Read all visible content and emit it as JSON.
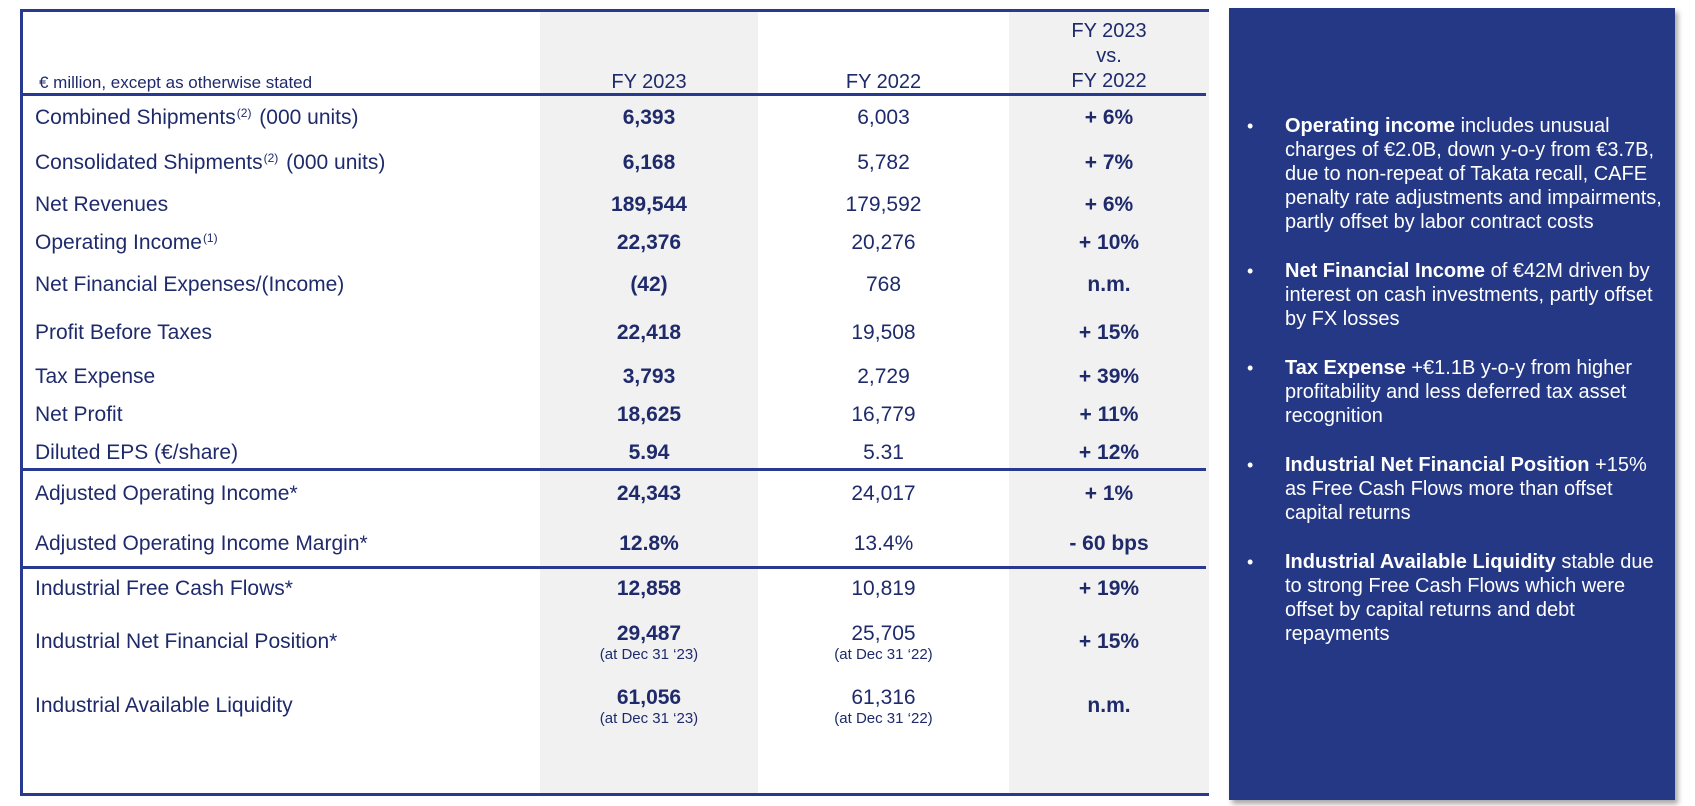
{
  "header": {
    "caption": "€ million, except as otherwise stated",
    "col1": "FY 2023",
    "col2": "FY 2022",
    "col3_lines": [
      "FY 2023",
      "vs.",
      "FY 2022"
    ]
  },
  "rows": [
    {
      "label": "Combined Shipments",
      "sup": "(2)",
      "suffix": " (000 units)",
      "fy2023": "6,393",
      "fy2022": "6,003",
      "change": "+ 6%"
    },
    {
      "label": "Consolidated Shipments",
      "sup": "(2)",
      "suffix": " (000 units)",
      "fy2023": "6,168",
      "fy2022": "5,782",
      "change": "+ 7%"
    },
    {
      "label": "Net Revenues",
      "fy2023": "189,544",
      "fy2022": "179,592",
      "change": "+ 6%"
    },
    {
      "label": "Operating Income",
      "sup": "(1)",
      "fy2023": "22,376",
      "fy2022": "20,276",
      "change": "+ 10%"
    },
    {
      "label": "Net Financial Expenses/(Income)",
      "fy2023": "(42)",
      "fy2022": "768",
      "change": "n.m."
    },
    {
      "label": "Profit Before Taxes",
      "fy2023": "22,418",
      "fy2022": "19,508",
      "change": "+ 15%"
    },
    {
      "label": "Tax Expense",
      "fy2023": "3,793",
      "fy2022": "2,729",
      "change": "+ 39%"
    },
    {
      "label": "Net Profit",
      "fy2023": "18,625",
      "fy2022": "16,779",
      "change": "+ 11%"
    },
    {
      "label": "Diluted EPS (€/share)",
      "fy2023": "5.94",
      "fy2022": "5.31",
      "change": "+ 12%"
    },
    {
      "label": "Adjusted Operating Income*",
      "fy2023": "24,343",
      "fy2022": "24,017",
      "change": "+ 1%"
    },
    {
      "label": "Adjusted Operating Income Margin*",
      "fy2023": "12.8%",
      "fy2022": "13.4%",
      "change": "- 60 bps"
    },
    {
      "label": "Industrial Free Cash Flows*",
      "fy2023": "12,858",
      "fy2022": "10,819",
      "change": "+ 19%"
    },
    {
      "label": "Industrial Net Financial Position*",
      "fy2023": "29,487",
      "fy2023_note": "(at Dec 31 ‘23)",
      "fy2022": "25,705",
      "fy2022_note": "(at Dec 31 ‘22)",
      "change": "+ 15%"
    },
    {
      "label": "Industrial Available Liquidity",
      "fy2023": "61,056",
      "fy2023_note": "(at Dec 31 ‘23)",
      "fy2022": "61,316",
      "fy2022_note": "(at Dec 31 ‘22)",
      "change": "n.m."
    }
  ],
  "commentary": [
    {
      "bold": "Operating income",
      "text": " includes unusual charges of €2.0B, down  y-o-y from €3.7B, due to non-repeat of Takata recall, CAFE penalty rate adjustments and impairments, partly offset by labor contract costs"
    },
    {
      "bold": "Net Financial Income",
      "text": " of €42M driven by interest on cash investments, partly offset by FX losses"
    },
    {
      "bold": "Tax Expense",
      "text": " +€1.1B y-o-y from higher profitability and less deferred tax asset recognition"
    },
    {
      "bold": "Industrial Net Financial Position",
      "text": " +15% as Free Cash Flows more than offset capital returns"
    },
    {
      "bold": "Industrial Available Liquidity",
      "text": " stable due to strong Free Cash Flows which were offset by capital returns and debt repayments"
    }
  ],
  "colors": {
    "navy": "#253885",
    "border": "#273a8f",
    "text": "#1f2a6b",
    "shade": "#f1f1f1"
  }
}
